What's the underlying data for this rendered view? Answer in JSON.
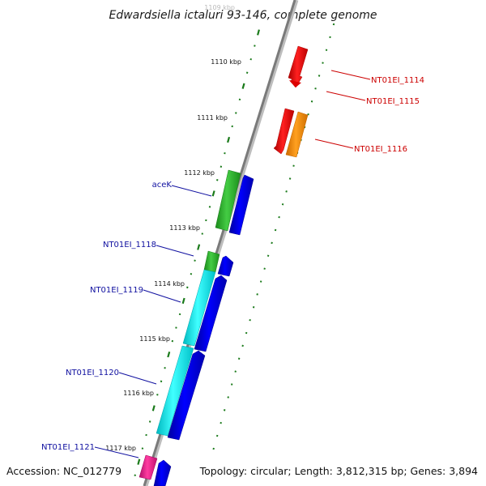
{
  "title": "Edwardsiella ictaluri 93-146, complete genome",
  "footer": {
    "accession": "Accession: NC_012779",
    "summary": "Topology: circular; Length: 3,812,315 bp; Genes: 3,894"
  },
  "ticks": [
    "1109 kbp",
    "1110 kbp",
    "1111 kbp",
    "1112 kbp",
    "1113 kbp",
    "1114 kbp",
    "1115 kbp",
    "1116 kbp",
    "1117 kbp"
  ],
  "genes_forward": [
    {
      "label": "NT01EI_1114",
      "color": "#ff0000"
    },
    {
      "label": "NT01EI_1115",
      "color": "#ff0000"
    },
    {
      "label": "NT01EI_1116",
      "color": "#ff8c00"
    }
  ],
  "genes_reverse": [
    {
      "label": "aceK",
      "color": "#22bb22"
    },
    {
      "label": "NT01EI_1118",
      "color": "#22bb22"
    },
    {
      "label": "NT01EI_1119",
      "color": "#00e5e5"
    },
    {
      "label": "NT01EI_1120",
      "color": "#00e5e5"
    },
    {
      "label": "NT01EI_1121",
      "color": "#ff1493"
    }
  ],
  "colors": {
    "backbone": "#808080",
    "tick": "#1a7a1a",
    "cds": "#0000dd",
    "label_reverse": "#1010a0",
    "label_forward": "#cc0000"
  }
}
